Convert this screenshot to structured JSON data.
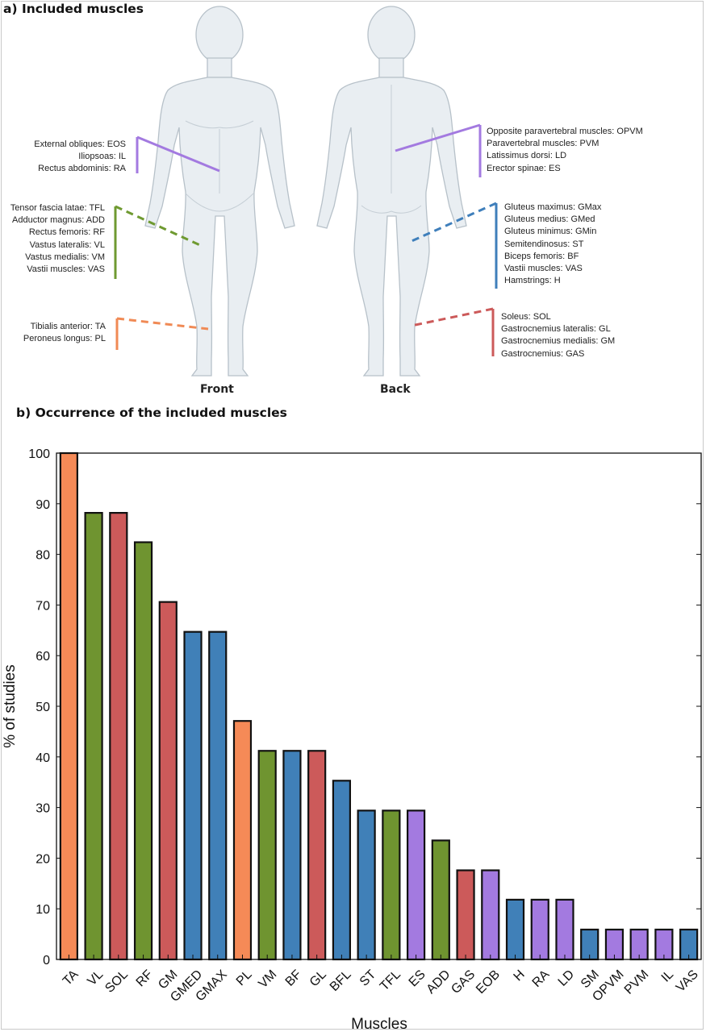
{
  "panel_a": {
    "title": "a) Included muscles",
    "front_label": "Front",
    "back_label": "Back",
    "groups": [
      {
        "side": "front",
        "color": "#a37ae0",
        "dashed": false,
        "labels": [
          "External obliques: EOS",
          "Iliopsoas: IL",
          "Rectus abdominis: RA"
        ]
      },
      {
        "side": "front",
        "color": "#6f9a31",
        "dashed": true,
        "labels": [
          "Tensor fascia latae: TFL",
          "Adductor magnus: ADD",
          "Rectus femoris: RF",
          "Vastus lateralis: VL",
          "Vastus medialis: VM",
          "Vastii muscles: VAS"
        ]
      },
      {
        "side": "front",
        "color": "#f08a55",
        "dashed": true,
        "labels": [
          "Tibialis anterior: TA",
          "Peroneus longus: PL"
        ]
      },
      {
        "side": "back",
        "color": "#a37ae0",
        "dashed": false,
        "labels": [
          "Opposite paravertebral muscles: OPVM",
          "Paravertebral muscles:  PVM",
          "Latissimus dorsi: LD",
          "Erector spinae: ES"
        ]
      },
      {
        "side": "back",
        "color": "#3f7fbb",
        "dashed": true,
        "labels": [
          "Gluteus maximus: GMax",
          "Gluteus medius: GMed",
          "Gluteus minimus: GMin",
          "Semitendinosus: ST",
          "Biceps femoris: BF",
          "Vastii muscles: VAS",
          "Hamstrings: H"
        ]
      },
      {
        "side": "back",
        "color": "#cc5a5a",
        "dashed": true,
        "labels": [
          "Soleus: SOL",
          "Gastrocnemius lateralis: GL",
          "Gastrocnemius medialis: GM",
          "Gastrocnemius: GAS"
        ]
      }
    ]
  },
  "panel_b": {
    "title": "b) Occurrence of the included muscles"
  },
  "chart_data": {
    "type": "bar",
    "xlabel": "Muscles",
    "ylabel": "% of studies",
    "ylim": [
      0,
      100
    ],
    "yticks": [
      0,
      10,
      20,
      30,
      40,
      50,
      60,
      70,
      80,
      90,
      100
    ],
    "grid": false,
    "categories": [
      "TA",
      "VL",
      "SOL",
      "RF",
      "GM",
      "GMED",
      "GMAX",
      "PL",
      "VM",
      "BF",
      "GL",
      "BFL",
      "ST",
      "TFL",
      "ES",
      "ADD",
      "GAS",
      "EOB",
      "H",
      "RA",
      "LD",
      "SM",
      "OPVM",
      "PVM",
      "IL",
      "VAS"
    ],
    "values": [
      100,
      88.2,
      88.2,
      82.4,
      70.6,
      64.7,
      64.7,
      47.1,
      41.2,
      41.2,
      41.2,
      35.3,
      29.4,
      29.4,
      29.4,
      23.5,
      17.6,
      17.6,
      11.8,
      11.8,
      11.8,
      5.9,
      5.9,
      5.9,
      5.9,
      5.9
    ],
    "colors": [
      "#f58a57",
      "#6f9430",
      "#cc5a5a",
      "#6f9430",
      "#cc5a5a",
      "#4080b8",
      "#4080b8",
      "#f58a57",
      "#6f9430",
      "#4080b8",
      "#cc5a5a",
      "#4080b8",
      "#4080b8",
      "#6f9430",
      "#a37ae0",
      "#6f9430",
      "#cc5a5a",
      "#a37ae0",
      "#4080b8",
      "#a37ae0",
      "#a37ae0",
      "#4080b8",
      "#a37ae0",
      "#a37ae0",
      "#a37ae0",
      "#4080b8"
    ]
  }
}
